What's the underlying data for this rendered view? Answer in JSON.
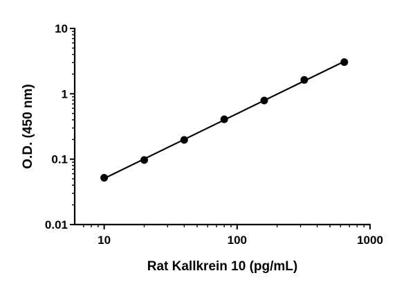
{
  "chart_data": {
    "type": "scatter",
    "xlabel": "Rat Kallkrein 10 (pg/mL)",
    "ylabel": "O.D. (450 nm)",
    "x_scale": "log",
    "y_scale": "log",
    "xlim": [
      6,
      1000
    ],
    "ylim": [
      0.01,
      10
    ],
    "x_ticks": [
      10,
      100,
      1000
    ],
    "x_tick_labels": [
      "10",
      "100",
      "1000"
    ],
    "y_ticks": [
      0.01,
      0.1,
      1,
      10
    ],
    "y_tick_labels": [
      "0.01",
      "0.1",
      "1",
      "10"
    ],
    "grid": false,
    "legend": "none",
    "series": [
      {
        "x": [
          10,
          20,
          40,
          80,
          160,
          320,
          640
        ],
        "y": [
          0.052,
          0.097,
          0.197,
          0.408,
          0.79,
          1.63,
          3.05
        ],
        "fit_line": true
      }
    ]
  }
}
